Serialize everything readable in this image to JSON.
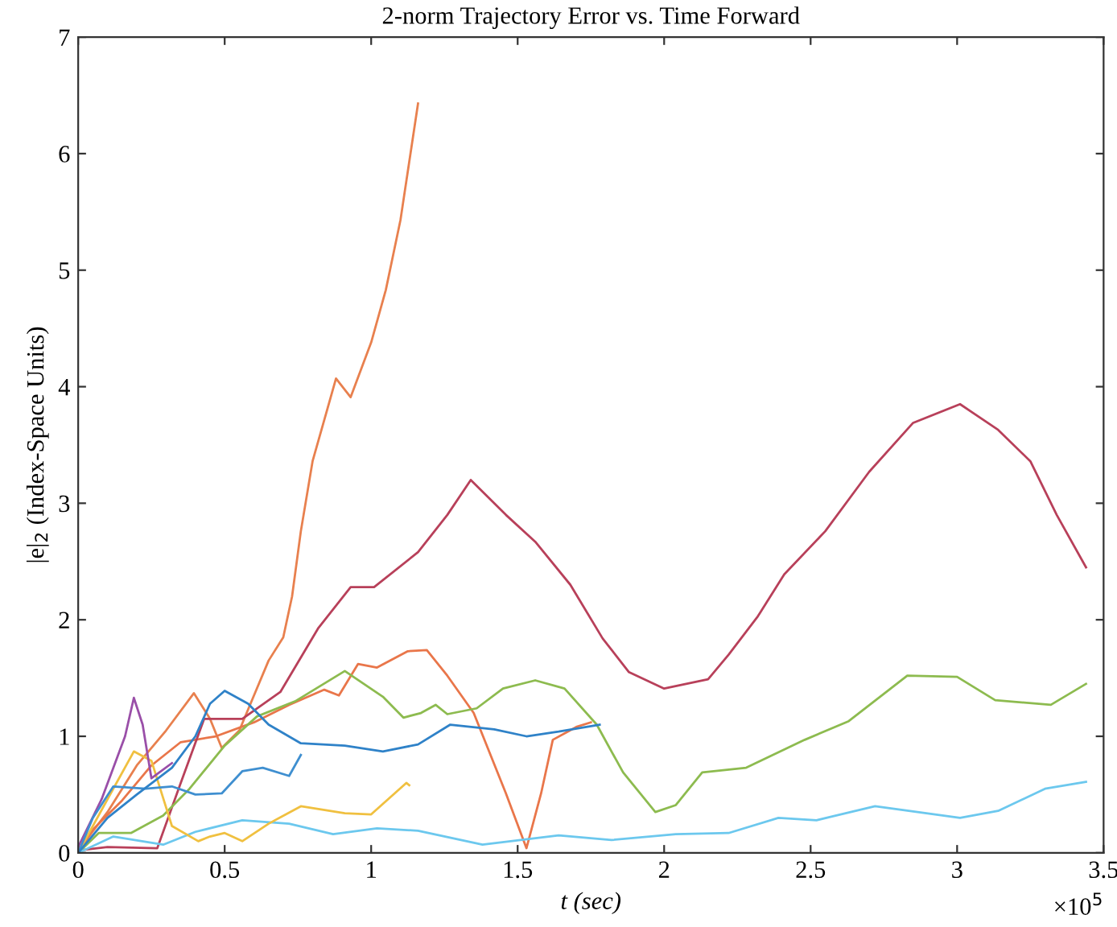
{
  "chart_data": {
    "type": "line",
    "title": "2-norm Trajectory Error vs. Time Forward",
    "xlabel": "t (sec)",
    "ylabel": "|e|$_{2}$ (Index-Space Units)",
    "xlim": [
      0,
      3.5
    ],
    "ylim": [
      0,
      7
    ],
    "xticks": [
      0,
      0.5,
      1,
      1.5,
      2,
      2.5,
      3,
      3.5
    ],
    "yticks": [
      0,
      1,
      2,
      3,
      4,
      5,
      6,
      7
    ],
    "grid": false,
    "legend": false,
    "marker": "none",
    "line_style": "solid",
    "annotations": [
      "×10$^{5}$"
    ],
    "series": [
      {
        "color": "#e8804e",
        "x": [
          0,
          0.1,
          0.2,
          0.3,
          0.395,
          0.45,
          0.49,
          0.55,
          0.6,
          0.65,
          0.7,
          0.73,
          0.76,
          0.8,
          0.88,
          0.93,
          1.0,
          1.05,
          1.1,
          1.16
        ],
        "values": [
          0.02,
          0.35,
          0.75,
          1.05,
          1.37,
          1.15,
          0.9,
          1.05,
          1.35,
          1.65,
          1.85,
          2.2,
          2.76,
          3.36,
          4.07,
          3.91,
          4.38,
          4.83,
          5.43,
          6.43
        ]
      },
      {
        "color": "#e9764a",
        "x": [
          0,
          0.05,
          0.15,
          0.25,
          0.35,
          0.47,
          0.6,
          0.72,
          0.84,
          0.89,
          0.955,
          1.02,
          1.125,
          1.19,
          1.26,
          1.35,
          1.46,
          1.53,
          1.58,
          1.62,
          1.7,
          1.75
        ],
        "values": [
          0,
          0.2,
          0.45,
          0.75,
          0.95,
          1.0,
          1.12,
          1.27,
          1.4,
          1.35,
          1.62,
          1.59,
          1.73,
          1.74,
          1.52,
          1.2,
          0.51,
          0.04,
          0.51,
          0.97,
          1.08,
          1.12
        ]
      },
      {
        "color": "#b8405a",
        "x": [
          0,
          0.1,
          0.27,
          0.35,
          0.43,
          0.56,
          0.69,
          0.82,
          0.93,
          1.01,
          1.16,
          1.26,
          1.34,
          1.46,
          1.56,
          1.68,
          1.79,
          1.88,
          2.0,
          2.15,
          2.22,
          2.32,
          2.41,
          2.55,
          2.7,
          2.85,
          3.01,
          3.14,
          3.25,
          3.34,
          3.44
        ],
        "values": [
          0.02,
          0.05,
          0.04,
          0.6,
          1.15,
          1.15,
          1.38,
          1.93,
          2.28,
          2.28,
          2.58,
          2.9,
          3.2,
          2.9,
          2.67,
          2.3,
          1.84,
          1.55,
          1.41,
          1.49,
          1.7,
          2.03,
          2.39,
          2.76,
          3.27,
          3.69,
          3.85,
          3.63,
          3.36,
          2.9,
          2.45
        ]
      },
      {
        "color": "#8dbb4f",
        "x": [
          0,
          0.07,
          0.18,
          0.29,
          0.38,
          0.5,
          0.61,
          0.74,
          0.91,
          1.04,
          1.11,
          1.17,
          1.22,
          1.26,
          1.36,
          1.45,
          1.56,
          1.66,
          1.77,
          1.86,
          1.97,
          2.04,
          2.13,
          2.28,
          2.48,
          2.63,
          2.83,
          3.0,
          3.13,
          3.32,
          3.44
        ],
        "values": [
          0,
          0.17,
          0.17,
          0.32,
          0.55,
          0.92,
          1.17,
          1.3,
          1.56,
          1.34,
          1.16,
          1.2,
          1.27,
          1.19,
          1.24,
          1.41,
          1.48,
          1.41,
          1.1,
          0.69,
          0.35,
          0.41,
          0.69,
          0.73,
          0.97,
          1.13,
          1.52,
          1.51,
          1.31,
          1.27,
          1.45
        ]
      },
      {
        "color": "#6cc8ee",
        "x": [
          0,
          0.12,
          0.29,
          0.4,
          0.56,
          0.72,
          0.87,
          1.02,
          1.16,
          1.38,
          1.64,
          1.82,
          2.04,
          2.22,
          2.39,
          2.52,
          2.72,
          3.01,
          3.14,
          3.3,
          3.44
        ],
        "values": [
          0,
          0.14,
          0.07,
          0.18,
          0.28,
          0.25,
          0.16,
          0.21,
          0.19,
          0.07,
          0.15,
          0.11,
          0.16,
          0.17,
          0.3,
          0.28,
          0.4,
          0.3,
          0.36,
          0.55,
          0.61
        ]
      },
      {
        "color": "#f0c040",
        "x": [
          0,
          0.1,
          0.19,
          0.25,
          0.32,
          0.41,
          0.45,
          0.5,
          0.56,
          0.65,
          0.76,
          0.91,
          1.0,
          1.12,
          1.13
        ],
        "values": [
          0,
          0.46,
          0.87,
          0.79,
          0.23,
          0.1,
          0.14,
          0.17,
          0.1,
          0.25,
          0.4,
          0.34,
          0.33,
          0.6,
          0.58
        ]
      },
      {
        "color": "#9a4fa8",
        "x": [
          0,
          0.08,
          0.16,
          0.19,
          0.22,
          0.25,
          0.32
        ],
        "values": [
          0.05,
          0.46,
          1.0,
          1.33,
          1.1,
          0.64,
          0.77
        ]
      },
      {
        "color": "#3f8fd0",
        "x": [
          0,
          0.05,
          0.12,
          0.23,
          0.32,
          0.4,
          0.49,
          0.56,
          0.63,
          0.72,
          0.76
        ],
        "values": [
          0,
          0.3,
          0.57,
          0.55,
          0.57,
          0.5,
          0.51,
          0.7,
          0.73,
          0.66,
          0.84
        ]
      },
      {
        "color": "#2f82c8",
        "x": [
          0,
          0.1,
          0.2,
          0.32,
          0.4,
          0.45,
          0.5,
          0.58,
          0.65,
          0.76,
          0.91,
          1.04,
          1.16,
          1.27,
          1.42,
          1.53,
          1.64,
          1.78
        ],
        "values": [
          0,
          0.3,
          0.5,
          0.73,
          1.0,
          1.28,
          1.39,
          1.28,
          1.1,
          0.94,
          0.92,
          0.87,
          0.93,
          1.1,
          1.06,
          1.0,
          1.04,
          1.1
        ]
      }
    ]
  }
}
